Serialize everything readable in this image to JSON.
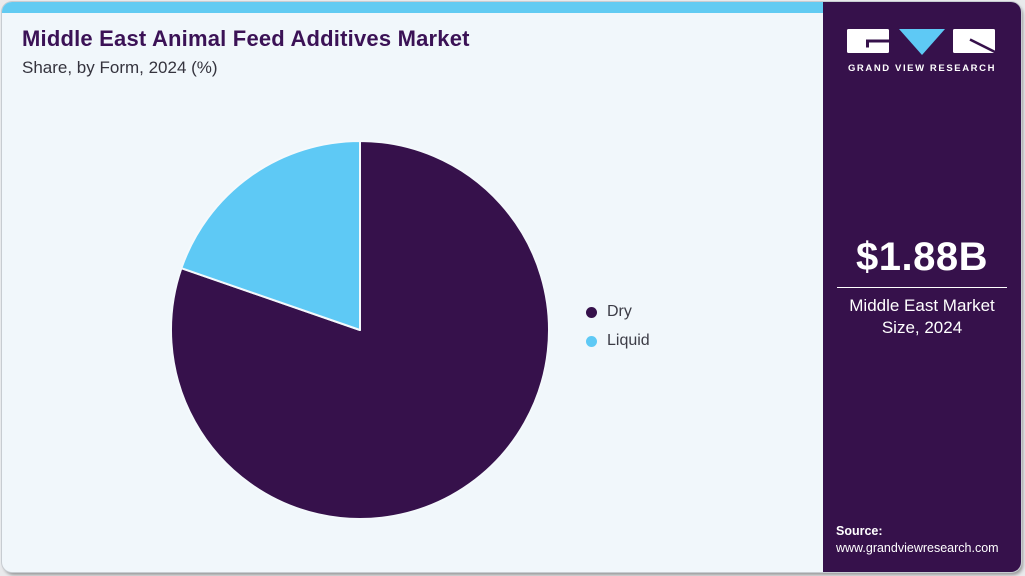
{
  "header": {
    "title": "Middle East Animal Feed Additives Market",
    "subtitle": "Share, by Form, 2024 (%)"
  },
  "chart_data": {
    "type": "pie",
    "title": "Middle East Animal Feed Additives Market Share, by Form, 2024 (%)",
    "categories": [
      "Dry",
      "Liquid"
    ],
    "values": [
      80.3,
      19.7
    ],
    "unit": "%",
    "colors": [
      "#36114b",
      "#5ec9f5"
    ],
    "start_angle": 0,
    "direction": "clockwise-from-top",
    "legend_position": "right",
    "labels_shown": false
  },
  "sidebar": {
    "logo_text": "GRAND VIEW RESEARCH",
    "market_size_value": "$1.88B",
    "market_size_label": "Middle East Market Size, 2024",
    "source_label": "Source:",
    "source_url": "www.grandviewresearch.com"
  },
  "colors": {
    "accent_bar": "#62cbf2",
    "card_background": "#f1f7fb",
    "sidebar_background": "#36114b",
    "title_text": "#3b1256",
    "body_text": "#3c3c46",
    "pie_dry": "#36114b",
    "pie_liquid": "#5ec9f5"
  }
}
